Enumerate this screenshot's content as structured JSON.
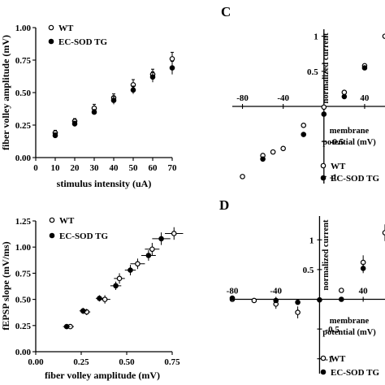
{
  "chart_data": [
    {
      "id": "A",
      "type": "scatter",
      "xlabel": "stimulus intensity (uA)",
      "ylabel": "fiber volley amplitude (mV)",
      "xlim": [
        0,
        70
      ],
      "ylim": [
        0,
        1.0
      ],
      "xticks": [
        "0",
        "10",
        "20",
        "30",
        "40",
        "50",
        "60",
        "70"
      ],
      "yticks": [
        "0.00",
        "0.25",
        "0.50",
        "0.75",
        "1.00"
      ],
      "legend": [
        "WT",
        "EC-SOD TG"
      ],
      "series": [
        {
          "name": "WT",
          "marker": "open",
          "x": [
            10,
            20,
            30,
            40,
            50,
            60,
            70
          ],
          "y": [
            0.19,
            0.28,
            0.38,
            0.46,
            0.56,
            0.64,
            0.76
          ],
          "err": [
            0.02,
            0.02,
            0.03,
            0.03,
            0.04,
            0.04,
            0.05
          ]
        },
        {
          "name": "EC-SOD TG",
          "marker": "filled",
          "x": [
            10,
            20,
            30,
            40,
            50,
            60,
            70
          ],
          "y": [
            0.17,
            0.26,
            0.35,
            0.44,
            0.52,
            0.62,
            0.69
          ],
          "err": [
            0.02,
            0.02,
            0.02,
            0.03,
            0.03,
            0.04,
            0.05
          ]
        }
      ]
    },
    {
      "id": "B",
      "type": "scatter",
      "xlabel": "fiber volley amplitude (mV)",
      "ylabel": "fEPSP slope (mV/ms)",
      "xlim": [
        0,
        0.75
      ],
      "ylim": [
        0,
        1.25
      ],
      "xticks": [
        "0.00",
        "0.25",
        "0.50",
        "0.75"
      ],
      "yticks": [
        "0.00",
        "0.25",
        "0.50",
        "0.75",
        "1.00",
        "1.25"
      ],
      "legend": [
        "WT",
        "EC-SOD TG"
      ],
      "series": [
        {
          "name": "WT",
          "marker": "open",
          "x": [
            0.19,
            0.28,
            0.38,
            0.46,
            0.56,
            0.64,
            0.76
          ],
          "y": [
            0.24,
            0.38,
            0.5,
            0.7,
            0.84,
            0.98,
            1.13
          ],
          "xerr": [
            0.02,
            0.02,
            0.03,
            0.03,
            0.04,
            0.04,
            0.05
          ],
          "yerr": [
            0.02,
            0.03,
            0.04,
            0.05,
            0.05,
            0.06,
            0.06
          ]
        },
        {
          "name": "EC-SOD TG",
          "marker": "filled",
          "x": [
            0.17,
            0.26,
            0.35,
            0.44,
            0.52,
            0.62,
            0.69
          ],
          "y": [
            0.24,
            0.39,
            0.51,
            0.63,
            0.78,
            0.92,
            1.08
          ],
          "xerr": [
            0.02,
            0.02,
            0.02,
            0.03,
            0.03,
            0.04,
            0.05
          ],
          "yerr": [
            0.02,
            0.03,
            0.03,
            0.04,
            0.05,
            0.05,
            0.06
          ]
        }
      ]
    },
    {
      "id": "C",
      "type": "scatter",
      "xlabel": "membrane potential (mV)",
      "ylabel": "normalized current",
      "xlim": [
        -90,
        60
      ],
      "ylim": [
        -1.1,
        1.1
      ],
      "xticks": [
        "-80",
        "-40",
        "40"
      ],
      "yticks": [
        "1",
        "0.5",
        "-0.5",
        "-1"
      ],
      "legend": [
        "WT",
        "EC-SOD TG"
      ],
      "series": [
        {
          "name": "WT",
          "marker": "open",
          "x": [
            -80,
            -60,
            -50,
            -40,
            -20,
            0,
            20,
            40,
            60
          ],
          "y": [
            -1.0,
            -0.7,
            -0.65,
            -0.6,
            -0.27,
            -0.01,
            0.2,
            0.58,
            1.0
          ]
        },
        {
          "name": "EC-SOD TG",
          "marker": "filled",
          "x": [
            -60,
            -20,
            0,
            20,
            40
          ],
          "y": [
            -0.75,
            -0.4,
            -0.11,
            0.14,
            0.55
          ]
        }
      ]
    },
    {
      "id": "D",
      "type": "scatter",
      "xlabel": "membrane potential (mV)",
      "ylabel": "normalized current",
      "xlim": [
        -80,
        60
      ],
      "ylim": [
        -1.25,
        1.4
      ],
      "xticks": [
        "-80",
        "-40",
        "40"
      ],
      "yticks": [
        "1",
        "0.5",
        "-0.5",
        "-1"
      ],
      "legend": [
        "WT",
        "EC-SOD TG"
      ],
      "series": [
        {
          "name": "WT",
          "marker": "open",
          "x": [
            -80,
            -60,
            -40,
            -20,
            20,
            40,
            60
          ],
          "y": [
            0.0,
            -0.02,
            -0.08,
            -0.22,
            0.15,
            0.62,
            1.12
          ],
          "err": [
            0.03,
            0.03,
            0.08,
            0.1,
            0.04,
            0.12,
            0.14
          ]
        },
        {
          "name": "EC-SOD TG",
          "marker": "filled",
          "x": [
            -80,
            -40,
            -20,
            0,
            20,
            40
          ],
          "y": [
            0.02,
            -0.02,
            -0.05,
            -0.01,
            0.0,
            0.52
          ],
          "err": [
            0.02,
            0.03,
            0.04,
            0.03,
            0.03,
            0.08
          ]
        }
      ]
    }
  ],
  "panel_letters": {
    "c": "C",
    "d": "D"
  }
}
